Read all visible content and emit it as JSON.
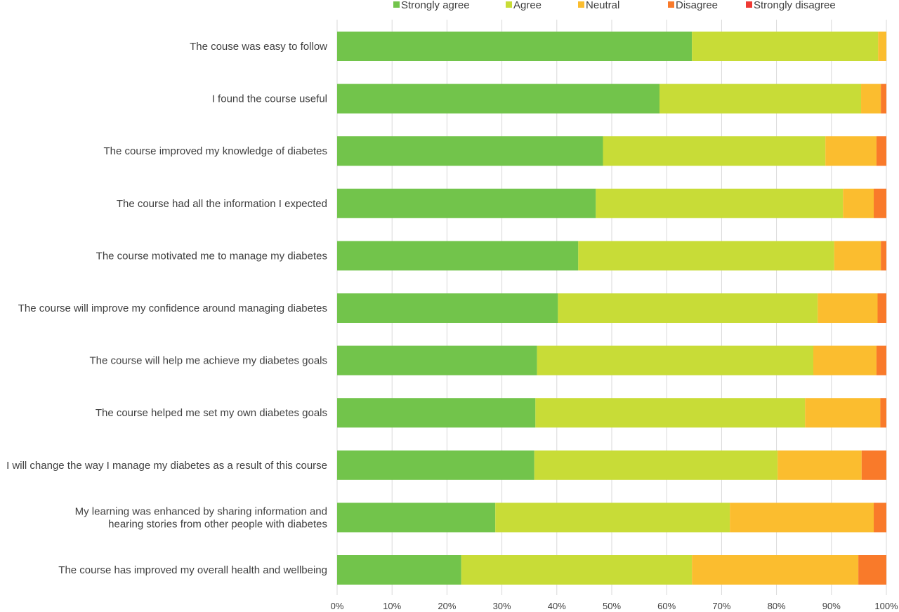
{
  "chart_data": {
    "type": "bar",
    "orientation": "horizontal",
    "stacked": "percent",
    "title": "",
    "xlabel": "",
    "ylabel": "",
    "xlim": [
      0,
      100
    ],
    "x_tick_labels": [
      "0%",
      "10%",
      "20%",
      "30%",
      "40%",
      "50%",
      "60%",
      "70%",
      "80%",
      "90%",
      "100%"
    ],
    "legend_position": "top",
    "grid": true,
    "categories": [
      [
        "The couse was easy to follow"
      ],
      [
        "I found the course useful"
      ],
      [
        "The course improved my knowledge of diabetes"
      ],
      [
        "The course had all the information I expected"
      ],
      [
        "The course motivated me to manage my diabetes"
      ],
      [
        "The course will improve my confidence around managing diabetes"
      ],
      [
        "The course will help me achieve my diabetes goals"
      ],
      [
        "The course helped me set my own diabetes goals"
      ],
      [
        "I will change the way I manage my diabetes as a result of this course"
      ],
      [
        "My learning was enhanced by sharing information and",
        "hearing stories from other people with diabetes"
      ],
      [
        "The course has improved my overall health and wellbeing"
      ]
    ],
    "series": [
      {
        "name": "Strongly agree",
        "color": "#72c44b",
        "values": [
          64.6,
          58.7,
          48.4,
          47.1,
          43.9,
          40.2,
          36.4,
          36.1,
          35.9,
          28.8,
          22.6
        ]
      },
      {
        "name": "Agree",
        "color": "#c8dc37",
        "values": [
          33.9,
          36.7,
          40.5,
          45.0,
          46.6,
          47.3,
          50.3,
          49.1,
          44.3,
          42.7,
          42.0
        ]
      },
      {
        "name": "Neutral",
        "color": "#fbbd2f",
        "values": [
          1.5,
          3.6,
          9.3,
          5.6,
          8.5,
          10.9,
          11.5,
          13.7,
          15.3,
          26.2,
          30.3
        ]
      },
      {
        "name": "Disagree",
        "color": "#f97a2a",
        "values": [
          0,
          1.0,
          1.8,
          2.3,
          1.0,
          1.6,
          1.8,
          1.1,
          4.5,
          2.3,
          5.1
        ]
      },
      {
        "name": "Strongly disagree",
        "color": "#ee3a34",
        "values": [
          0,
          0,
          0,
          0,
          0,
          0,
          0,
          0,
          0,
          0,
          0
        ]
      }
    ]
  }
}
